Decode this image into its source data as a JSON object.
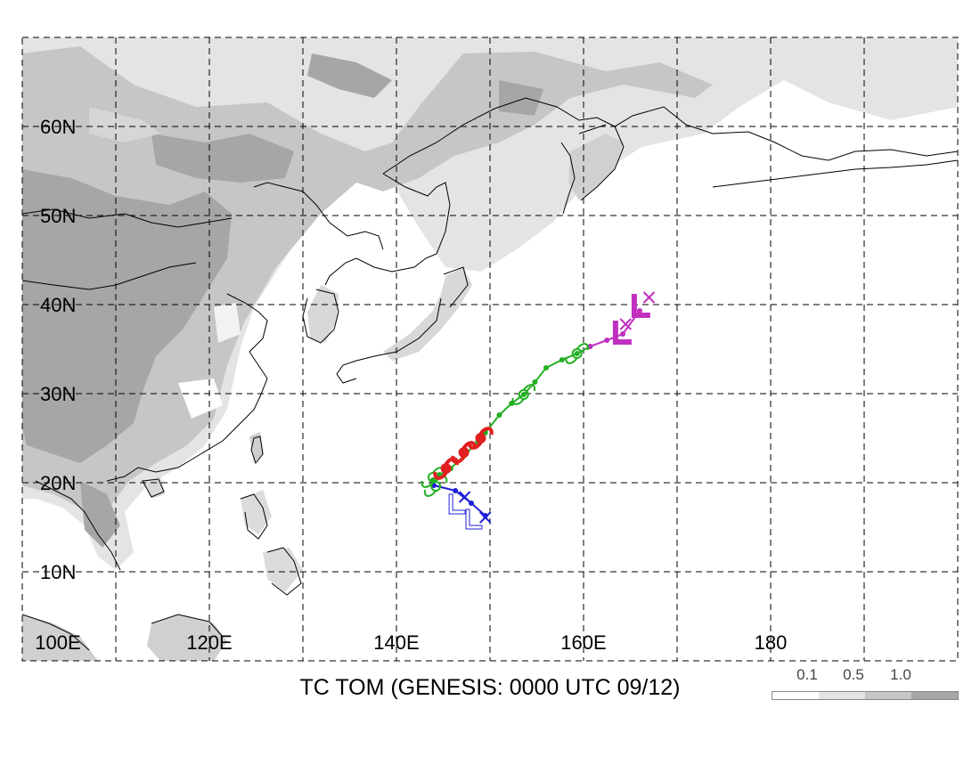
{
  "title": "TC TOM (GENESIS: 0000 UTC 09/12)",
  "lat_labels": [
    "60N",
    "50N",
    "40N",
    "30N",
    "20N",
    "10N"
  ],
  "lon_labels": [
    "100E",
    "120E",
    "140E",
    "160E",
    "180"
  ],
  "legend": {
    "ticks": [
      "0.1",
      "0.5",
      "1.0"
    ],
    "colors": [
      "#ffffff",
      "#e4e4e4",
      "#c6c6c6",
      "#a6a6a6"
    ]
  },
  "map_extent": {
    "lon_min": 100,
    "lon_max": 200,
    "lat_min": 0,
    "lat_max": 70
  },
  "track": {
    "green_line": [
      {
        "lon": 143.9,
        "lat": 20.3
      },
      {
        "lon": 144.6,
        "lat": 20.9
      },
      {
        "lon": 145.8,
        "lat": 21.6
      },
      {
        "lon": 147.2,
        "lat": 23.0
      },
      {
        "lon": 148.7,
        "lat": 24.6
      },
      {
        "lon": 149.5,
        "lat": 25.6
      },
      {
        "lon": 151.0,
        "lat": 27.6
      },
      {
        "lon": 152.3,
        "lat": 28.9
      },
      {
        "lon": 153.6,
        "lat": 29.9
      },
      {
        "lon": 154.8,
        "lat": 31.3
      },
      {
        "lon": 156.0,
        "lat": 32.9
      },
      {
        "lon": 157.7,
        "lat": 33.8
      },
      {
        "lon": 159.3,
        "lat": 34.5
      },
      {
        "lon": 160.7,
        "lat": 35.3
      }
    ],
    "magenta_line": [
      {
        "lon": 160.7,
        "lat": 35.3
      },
      {
        "lon": 162.5,
        "lat": 36.0
      },
      {
        "lon": 164.2,
        "lat": 36.7
      },
      {
        "lon": 166.0,
        "lat": 39.3
      }
    ],
    "blue_line": [
      {
        "lon": 144.0,
        "lat": 19.7
      },
      {
        "lon": 146.3,
        "lat": 19.1
      },
      {
        "lon": 148.0,
        "lat": 17.7
      },
      {
        "lon": 149.5,
        "lat": 16.3
      }
    ],
    "storm_symbols_green": [
      {
        "lon": 143.9,
        "lat": 20.6
      },
      {
        "lon": 144.2,
        "lat": 19.6
      },
      {
        "lon": 153.6,
        "lat": 29.9
      },
      {
        "lon": 159.3,
        "lat": 34.5
      }
    ],
    "storm_symbols_red": [
      {
        "lon": 145.3,
        "lat": 21.6
      },
      {
        "lon": 147.2,
        "lat": 23.4
      },
      {
        "lon": 149.0,
        "lat": 25.0
      }
    ],
    "x_markers_blue": [
      {
        "lon": 147.3,
        "lat": 18.4
      },
      {
        "lon": 149.5,
        "lat": 16.1
      }
    ],
    "x_markers_magenta": [
      {
        "lon": 164.5,
        "lat": 37.8
      },
      {
        "lon": 167.0,
        "lat": 40.8
      }
    ],
    "l_markers_blue": [
      {
        "lon": 146.2,
        "lat": 17.1
      },
      {
        "lon": 148.0,
        "lat": 15.4
      }
    ],
    "l_markers_magenta": [
      {
        "lon": 163.8,
        "lat": 36.6
      },
      {
        "lon": 165.8,
        "lat": 39.6
      }
    ],
    "colors": {
      "green": "#22b022",
      "red": "#e02020",
      "blue": "#2020d8",
      "magenta": "#c030c0"
    }
  }
}
